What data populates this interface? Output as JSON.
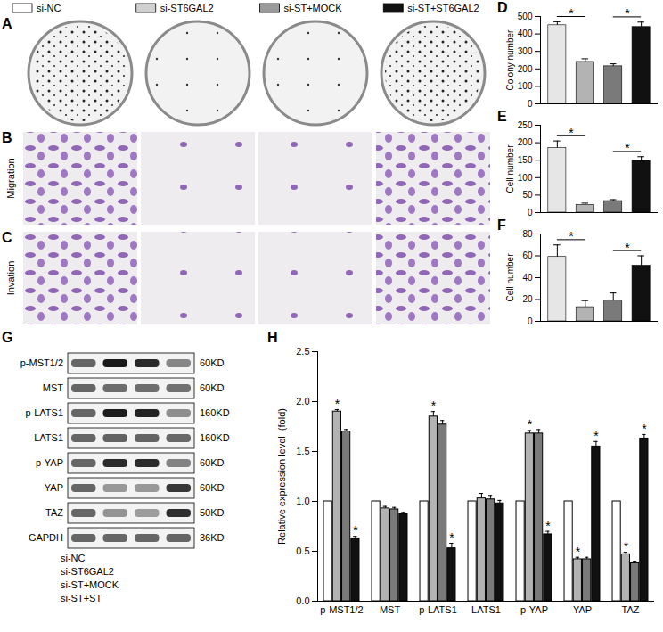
{
  "chart_data": [
    {
      "type": "bar",
      "title": "D",
      "y_label": "Colony number",
      "categories": [
        "si-NC",
        "si-ST6GAL2",
        "si-ST+MOCK",
        "si-ST+ST6GAL2"
      ],
      "values": [
        450,
        240,
        215,
        440
      ],
      "errors": [
        20,
        18,
        14,
        28
      ],
      "colors": [
        "#e6e6e6",
        "#b3b3b3",
        "#7a7a7a",
        "#111111"
      ],
      "ylim": [
        0,
        500
      ],
      "yticks": [
        0,
        100,
        200,
        300,
        400,
        500
      ],
      "tick_labels": "y",
      "annotations": [
        {
          "from": "si-NC",
          "to": "si-ST6GAL2",
          "text": "*"
        },
        {
          "from": "si-ST+MOCK",
          "to": "si-ST+ST6GAL2",
          "text": "*"
        }
      ]
    },
    {
      "type": "bar",
      "title": "E",
      "y_label": "Cell number",
      "categories": [
        "si-NC",
        "si-ST6GAL2",
        "si-ST+MOCK",
        "si-ST+ST6GAL2"
      ],
      "values": [
        185,
        22,
        33,
        148
      ],
      "errors": [
        20,
        5,
        4,
        12
      ],
      "colors": [
        "#e6e6e6",
        "#b3b3b3",
        "#7a7a7a",
        "#111111"
      ],
      "ylim": [
        0,
        250
      ],
      "yticks": [
        0,
        50,
        100,
        150,
        200,
        250
      ],
      "tick_labels": "y",
      "annotations": [
        {
          "from": "si-NC",
          "to": "si-ST6GAL2",
          "text": "*"
        },
        {
          "from": "si-ST+MOCK",
          "to": "si-ST+ST6GAL2",
          "text": "*"
        }
      ]
    },
    {
      "type": "bar",
      "title": "F",
      "y_label": "Cell number",
      "categories": [
        "si-NC",
        "si-ST6GAL2",
        "si-ST+MOCK",
        "si-ST+ST6GAL2"
      ],
      "values": [
        59,
        13,
        19,
        51
      ],
      "errors": [
        11,
        6,
        7,
        9
      ],
      "colors": [
        "#e6e6e6",
        "#b3b3b3",
        "#7a7a7a",
        "#111111"
      ],
      "ylim": [
        0,
        80
      ],
      "yticks": [
        0,
        20,
        40,
        60,
        80
      ],
      "tick_labels": "y",
      "annotations": [
        {
          "from": "si-NC",
          "to": "si-ST6GAL2",
          "text": "*"
        },
        {
          "from": "si-ST+MOCK",
          "to": "si-ST+ST6GAL2",
          "text": "*"
        }
      ]
    },
    {
      "type": "bar",
      "title": "H",
      "y_label": "Relative expression level  (fold)",
      "categories": [
        "p-MST1/2",
        "MST",
        "p-LATS1",
        "LATS1",
        "p-YAP",
        "YAP",
        "TAZ"
      ],
      "series": [
        {
          "name": "si-NC",
          "color": "#ffffff",
          "values": [
            1,
            1,
            1,
            1,
            1,
            1,
            1
          ],
          "errors": [
            0,
            0,
            0,
            0,
            0,
            0,
            0
          ]
        },
        {
          "name": "si-ST6GAL2",
          "color": "#b3b3b3",
          "values": [
            1.9,
            0.93,
            1.85,
            1.03,
            1.68,
            0.42,
            0.47
          ],
          "errors": [
            0.02,
            0.02,
            0.05,
            0.05,
            0.03,
            0.02,
            0.02
          ]
        },
        {
          "name": "si-ST+MOCK",
          "color": "#7a7a7a",
          "values": [
            1.7,
            0.92,
            1.77,
            1.02,
            1.68,
            0.42,
            0.38
          ],
          "errors": [
            0.02,
            0.02,
            0.04,
            0.04,
            0.04,
            0.02,
            0.02
          ]
        },
        {
          "name": "si-ST+ST6GAL2",
          "color": "#111111",
          "values": [
            0.63,
            0.87,
            0.53,
            0.98,
            0.67,
            1.55,
            1.63
          ],
          "errors": [
            0.02,
            0.02,
            0.05,
            0.03,
            0.03,
            0.05,
            0.04
          ]
        }
      ],
      "ylim": [
        0,
        2.5
      ],
      "yticks": [
        {
          "value": 0,
          "label": "0.0"
        },
        {
          "value": 0.5,
          "label": "0.5"
        },
        {
          "value": 1,
          "label": "1.0"
        },
        {
          "value": 1.5,
          "label": "1.5"
        },
        {
          "value": 2,
          "label": "2.0"
        },
        {
          "value": 2.5,
          "label": "2.5"
        }
      ],
      "annotations": [
        {
          "category": "p-MST1/2",
          "series": "si-ST6GAL2",
          "text": "*"
        },
        {
          "category": "p-MST1/2",
          "series": "si-ST+ST6GAL2",
          "text": "*"
        },
        {
          "category": "p-LATS1",
          "series": "si-ST6GAL2",
          "text": "*"
        },
        {
          "category": "p-LATS1",
          "series": "si-ST+ST6GAL2",
          "text": "*"
        },
        {
          "category": "p-YAP",
          "series": "si-ST6GAL2",
          "text": "*"
        },
        {
          "category": "p-YAP",
          "series": "si-ST+ST6GAL2",
          "text": "*"
        },
        {
          "category": "YAP",
          "series": "si-ST6GAL2",
          "text": "*"
        },
        {
          "category": "YAP",
          "series": "si-ST+ST6GAL2",
          "text": "*"
        },
        {
          "category": "TAZ",
          "series": "si-ST6GAL2",
          "text": "*"
        },
        {
          "category": "TAZ",
          "series": "si-ST+ST6GAL2",
          "text": "*"
        }
      ]
    }
  ],
  "legend": {
    "labels": [
      "si-NC",
      "si-ST6GAL2",
      "si-ST+MOCK",
      "si-ST+ST6GAL2"
    ],
    "colors": [
      "#ffffff",
      "#d0d0d0",
      "#9a9a9a",
      "#111111"
    ]
  },
  "image_panels": [
    {
      "panel": "A"
    },
    {
      "panel": "B",
      "label": "Migration"
    },
    {
      "panel": "C",
      "label": "Invation"
    }
  ],
  "blot": {
    "panel": "G",
    "bands": [
      "p-MST1/2",
      "MST",
      "p-LATS1",
      "LATS1",
      "p-YAP",
      "YAP",
      "TAZ",
      "GAPDH"
    ],
    "sizes": [
      "60KD",
      "60KD",
      "160KD",
      "160KD",
      "60KD",
      "60KD",
      "50KD",
      "36KD"
    ],
    "lanes": [
      "si-NC",
      "si-ST6GAL2",
      "si-ST+MOCK",
      "si-ST+ST"
    ]
  }
}
